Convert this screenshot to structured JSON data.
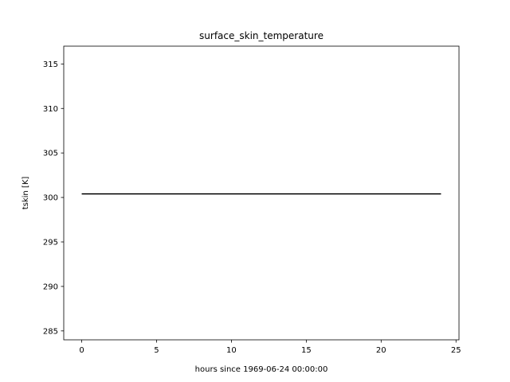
{
  "chart_data": {
    "type": "line",
    "title": "surface_skin_temperature",
    "xlabel": "hours since 1969-06-24 00:00:00",
    "ylabel": "tskin [K]",
    "xlim": [
      -1.2,
      25.2
    ],
    "ylim": [
      284,
      317
    ],
    "xticks": [
      0,
      5,
      10,
      15,
      20,
      25
    ],
    "yticks": [
      285,
      290,
      295,
      300,
      305,
      310,
      315
    ],
    "grid": false,
    "series": [
      {
        "color": "#000000",
        "x": [
          0,
          24
        ],
        "y": [
          300.4,
          300.4
        ]
      }
    ]
  }
}
